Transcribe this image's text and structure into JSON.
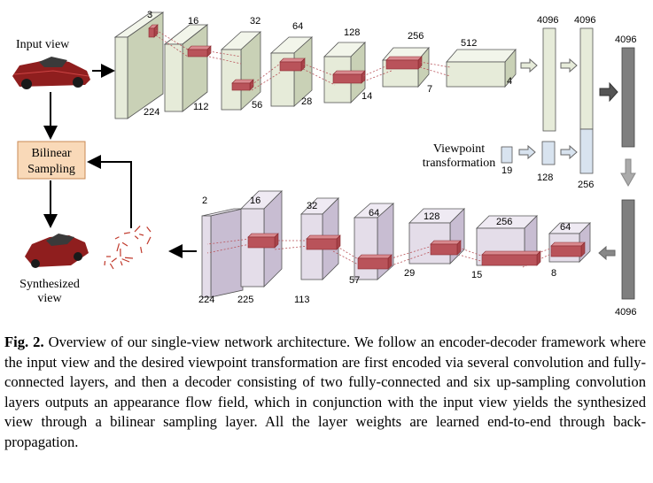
{
  "labels": {
    "input_view": "Input view",
    "bilinear_line1": "Bilinear",
    "bilinear_line2": "Sampling",
    "synth_line1": "Synthesized",
    "synth_line2": "view",
    "viewpoint_line1": "Viewpoint",
    "viewpoint_line2": "transformation"
  },
  "encoder": {
    "channels": [
      "3",
      "16",
      "32",
      "64",
      "128",
      "256",
      "512"
    ],
    "sizes": [
      "224",
      "112",
      "56",
      "28",
      "14",
      "7",
      "4"
    ]
  },
  "fc_encoder": [
    "4096",
    "4096"
  ],
  "viewpoint": {
    "sizes": [
      "19",
      "128",
      "256"
    ]
  },
  "fc_decoder": [
    "4096",
    "4096"
  ],
  "decoder": {
    "channels": [
      "2",
      "16",
      "32",
      "64",
      "128",
      "256",
      "64"
    ],
    "sizes": [
      "224",
      "225",
      "113",
      "57",
      "29",
      "15",
      "8"
    ]
  },
  "caption": {
    "label": "Fig. 2.",
    "text": "Overview of our single-view network architecture. We follow an encoder-decoder framework where the input view and the desired viewpoint transformation are first encoded via several convolution and fully-connected layers, and then a decoder consisting of two fully-connected and six up-sampling convolution layers outputs an appearance flow field, which in conjunction with the input view yields the synthesized view through a bilinear sampling layer. All the layer weights are learned end-to-end through back-propagation."
  },
  "colors": {
    "encoder_face": "#e6ebd9",
    "encoder_top": "#f2f5ea",
    "encoder_side": "#c9d1b6",
    "decoder_face": "#e4dde9",
    "decoder_top": "#efeaf3",
    "decoder_side": "#c8bdd2",
    "kernel": "#b9535a",
    "gray_fc": "#7f7f7f",
    "blue_fc": "#d8e3ef",
    "bilinear_box": "#f9d9b8"
  }
}
